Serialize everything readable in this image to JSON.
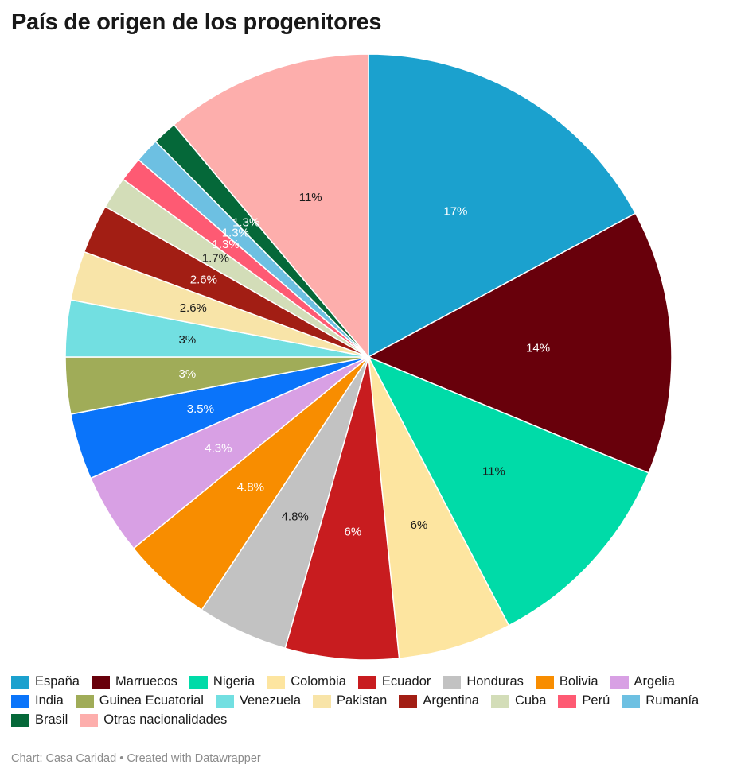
{
  "title": "País de origen de los progenitores",
  "footer": {
    "source": "Chart: Casa Caridad",
    "separator": " • ",
    "credit": "Created with Datawrapper"
  },
  "chart_data": {
    "type": "pie",
    "title": "País de origen de los progenitores",
    "legend_position": "bottom",
    "slices": [
      {
        "name": "España",
        "value": 17,
        "label": "17%",
        "color": "#1ba1ce",
        "text_color": "#ffffff"
      },
      {
        "name": "Marruecos",
        "value": 14,
        "label": "14%",
        "color": "#68000b",
        "text_color": "#ffffff"
      },
      {
        "name": "Nigeria",
        "value": 11,
        "label": "11%",
        "color": "#00dba8",
        "text_color": "#1a1a1a"
      },
      {
        "name": "Colombia",
        "value": 6,
        "label": "6%",
        "color": "#fde5a0",
        "text_color": "#1a1a1a"
      },
      {
        "name": "Ecuador",
        "value": 6,
        "label": "6%",
        "color": "#c81c1f",
        "text_color": "#ffffff"
      },
      {
        "name": "Honduras",
        "value": 4.8,
        "label": "4.8%",
        "color": "#c2c2c2",
        "text_color": "#1a1a1a"
      },
      {
        "name": "Bolivia",
        "value": 4.8,
        "label": "4.8%",
        "color": "#f88d00",
        "text_color": "#ffffff"
      },
      {
        "name": "Argelia",
        "value": 4.3,
        "label": "4.3%",
        "color": "#d8a0e4",
        "text_color": "#ffffff"
      },
      {
        "name": "India",
        "value": 3.5,
        "label": "3.5%",
        "color": "#0a74fa",
        "text_color": "#ffffff"
      },
      {
        "name": "Guinea Ecuatorial",
        "value": 3,
        "label": "3%",
        "color": "#a0ac58",
        "text_color": "#ffffff"
      },
      {
        "name": "Venezuela",
        "value": 3,
        "label": "3%",
        "color": "#72dfe1",
        "text_color": "#1a1a1a"
      },
      {
        "name": "Pakistan",
        "value": 2.6,
        "label": "2.6%",
        "color": "#f8e4a8",
        "text_color": "#1a1a1a"
      },
      {
        "name": "Argentina",
        "value": 2.6,
        "label": "2.6%",
        "color": "#a21e14",
        "text_color": "#ffffff"
      },
      {
        "name": "Cuba",
        "value": 1.7,
        "label": "1.7%",
        "color": "#d3ddb8",
        "text_color": "#1a1a1a"
      },
      {
        "name": "Perú",
        "value": 1.3,
        "label": "1.3%",
        "color": "#fe5a73",
        "text_color": "#ffffff"
      },
      {
        "name": "Rumanía",
        "value": 1.3,
        "label": "1.3%",
        "color": "#6dc0e2",
        "text_color": "#ffffff"
      },
      {
        "name": "Brasil",
        "value": 1.3,
        "label": "1.3%",
        "color": "#056839",
        "text_color": "#ffffff"
      },
      {
        "name": "Otras nacionalidades",
        "value": 11,
        "label": "11%",
        "color": "#fdaeac",
        "text_color": "#1a1a1a"
      }
    ]
  }
}
